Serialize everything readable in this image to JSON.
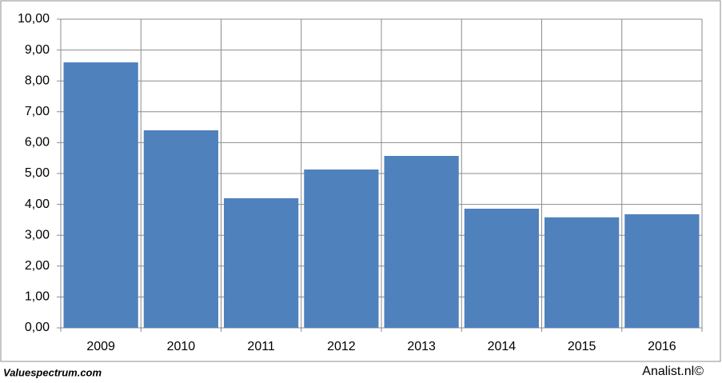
{
  "chart_data": {
    "type": "bar",
    "categories": [
      "2009",
      "2010",
      "2011",
      "2012",
      "2013",
      "2014",
      "2015",
      "2016"
    ],
    "values": [
      8.6,
      6.4,
      4.2,
      5.13,
      5.57,
      3.86,
      3.58,
      3.68
    ],
    "color": "#4f81bd",
    "ylim": [
      0,
      10
    ],
    "yticks": [
      {
        "value": 0,
        "label": "0,00"
      },
      {
        "value": 1,
        "label": "1,00"
      },
      {
        "value": 2,
        "label": "2,00"
      },
      {
        "value": 3,
        "label": "3,00"
      },
      {
        "value": 4,
        "label": "4,00"
      },
      {
        "value": 5,
        "label": "5,00"
      },
      {
        "value": 6,
        "label": "6,00"
      },
      {
        "value": 7,
        "label": "7,00"
      },
      {
        "value": 8,
        "label": "8,00"
      },
      {
        "value": 9,
        "label": "9,00"
      },
      {
        "value": 10,
        "label": "10,00"
      }
    ],
    "grid": true
  },
  "footer": {
    "left": "Valuespectrum.com",
    "right": "Analist.nl©"
  }
}
